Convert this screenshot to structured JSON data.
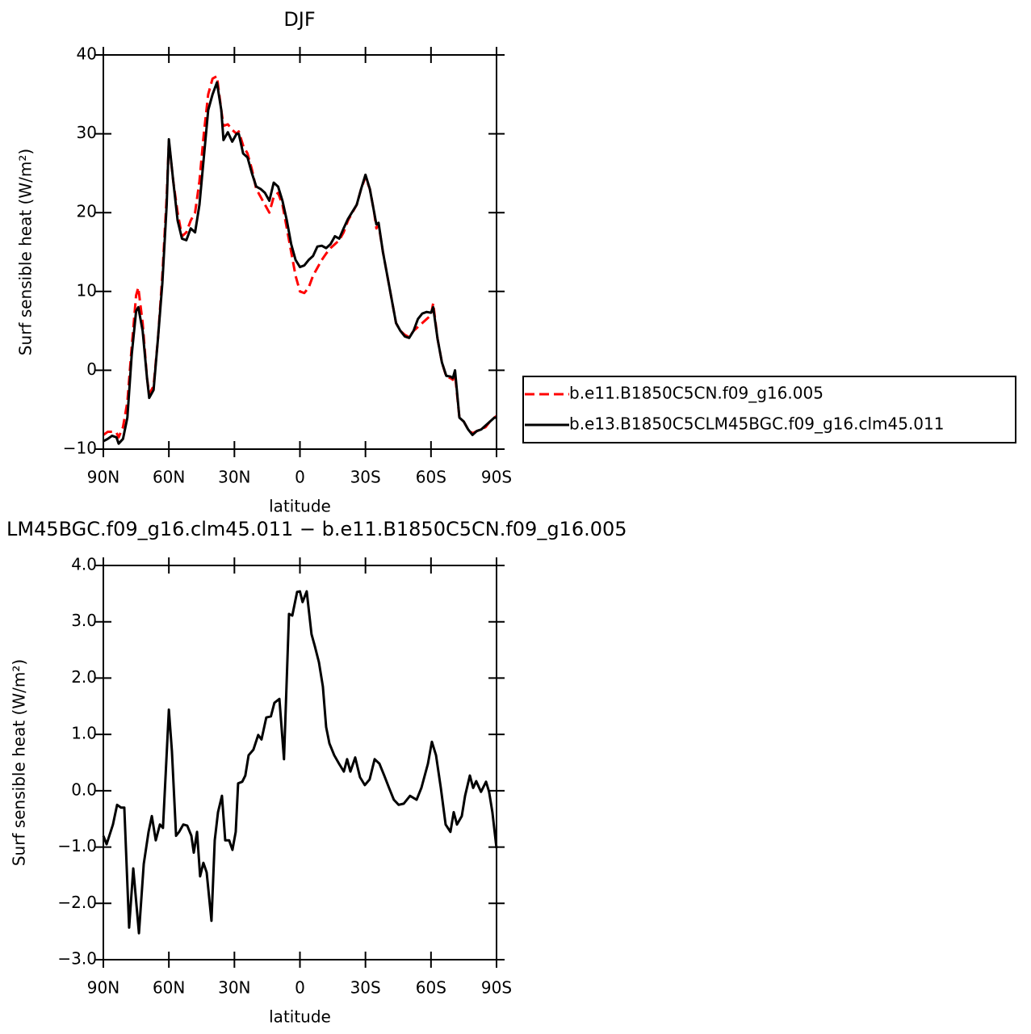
{
  "chart_data": [
    {
      "type": "line",
      "title": "DJF",
      "xlabel": "latitude",
      "ylabel": "Surf  sensible heat (W/m²)",
      "x": [
        90,
        88,
        86,
        84,
        83,
        81,
        79,
        77,
        75,
        74,
        72,
        70,
        69,
        67,
        65,
        63,
        61,
        60,
        58,
        56,
        54,
        52,
        50,
        48,
        46,
        44,
        42,
        40,
        38,
        36,
        35,
        33,
        31,
        29,
        28,
        26,
        24,
        22,
        20,
        18,
        16,
        14,
        12,
        10,
        8,
        6,
        4,
        2,
        0,
        -2,
        -4,
        -6,
        -8,
        -10,
        -12,
        -14,
        -16,
        -18,
        -20,
        -22,
        -24,
        -26,
        -28,
        -30,
        -32,
        -34,
        -35,
        -36,
        -38,
        -40,
        -42,
        -44,
        -46,
        -48,
        -50,
        -52,
        -54,
        -56,
        -58,
        -60,
        -61,
        -63,
        -65,
        -67,
        -69,
        -70,
        -71,
        -73,
        -75,
        -77,
        -79,
        -81,
        -83,
        -85,
        -87,
        -89,
        -90
      ],
      "series": [
        {
          "name": "b.e11.B1850C5CN.f09_g16.005",
          "color": "#ff0000",
          "style": "dashed",
          "values": [
            -8.2,
            -7.8,
            -7.8,
            -7.9,
            -8.5,
            -7.2,
            -4,
            3,
            9.5,
            10.5,
            6,
            -1,
            -3,
            -2,
            4,
            12,
            22,
            29,
            24,
            20,
            17,
            17.5,
            19,
            20,
            24,
            30,
            35,
            37,
            37.3,
            33,
            31,
            31.2,
            30.5,
            30,
            30.3,
            28.5,
            27.5,
            25.5,
            23,
            22,
            21,
            20,
            22,
            22.5,
            21,
            18,
            15,
            12,
            10,
            9.8,
            10.5,
            12,
            13,
            14,
            14.8,
            15.5,
            16,
            16.5,
            17.5,
            19,
            20,
            21,
            23,
            24.5,
            23,
            20,
            18,
            18.5,
            15,
            12,
            9,
            6,
            5,
            4.5,
            4.2,
            5,
            5.5,
            6,
            6.5,
            7,
            8.5,
            4,
            1,
            -0.8,
            -1,
            -1.2,
            -0.5,
            -6,
            -6.5,
            -7.5,
            -8,
            -7.7,
            -7.5,
            -7.2,
            -6.5,
            -6,
            -5.8
          ]
        },
        {
          "name": "b.e13.B1850C5CLM45BGC.f09_g16.clm45.011",
          "color": "#000000",
          "style": "solid",
          "values": [
            -9,
            -8.7,
            -8.3,
            -8.5,
            -9.3,
            -8.7,
            -6,
            2,
            7.5,
            8,
            5,
            -1,
            -3.5,
            -2.5,
            4,
            11,
            21,
            29.3,
            24,
            19,
            16.7,
            16.5,
            18,
            17.5,
            21,
            27,
            33,
            35,
            36.5,
            33,
            29.2,
            30.2,
            29,
            30,
            30,
            27.5,
            27,
            25,
            23.3,
            23,
            22.5,
            21.5,
            23.8,
            23.3,
            21.5,
            19,
            16,
            14,
            13.1,
            13.3,
            14,
            14.5,
            15.7,
            15.8,
            15.5,
            16,
            17,
            16.7,
            18,
            19.2,
            20.1,
            21,
            23,
            24.8,
            23,
            20,
            18.5,
            18.7,
            15,
            12,
            9,
            6,
            5,
            4.3,
            4.1,
            5,
            6.5,
            7.2,
            7.4,
            7.3,
            8,
            4,
            1,
            -0.7,
            -0.8,
            -1,
            0,
            -6,
            -6.5,
            -7.5,
            -8.2,
            -7.7,
            -7.5,
            -7,
            -6.5,
            -6,
            -6
          ]
        }
      ],
      "legend": "right",
      "xlim": [
        90,
        -90
      ],
      "xticks": [
        {
          "value": 90,
          "label": "90N"
        },
        {
          "value": 60,
          "label": "60N"
        },
        {
          "value": 30,
          "label": "30N"
        },
        0,
        {
          "value": -30,
          "label": "30S"
        },
        {
          "value": -60,
          "label": "60S"
        },
        {
          "value": -90,
          "label": "90S"
        }
      ],
      "ylim": [
        -10,
        40
      ],
      "yticks": [
        {
          "value": -10,
          "label": "−10"
        },
        0,
        10,
        20,
        30,
        40
      ]
    },
    {
      "type": "line",
      "title": "LM45BGC.f09_g16.clm45.011 − b.e11.B1850C5CN.f09_g16.005",
      "xlabel": "latitude",
      "ylabel": "Surf  sensible heat (W/m²)",
      "x": [
        90,
        88.5,
        85.6,
        83.7,
        81.9,
        80.4,
        78.2,
        76.3,
        73.7,
        71.5,
        69.3,
        67.8,
        66,
        64.1,
        62.7,
        61.5,
        60,
        58.6,
        56.7,
        55.3,
        53.4,
        51.6,
        49.7,
        48.6,
        47.1,
        45.7,
        44.2,
        42.7,
        40.5,
        39,
        37.5,
        35.7,
        34.2,
        32.4,
        30.9,
        29.4,
        28.3,
        26.4,
        25,
        23.5,
        21.3,
        19.1,
        17.6,
        15.4,
        13.3,
        11.7,
        9.4,
        7.3,
        5,
        3.5,
        1.3,
        0,
        -1.2,
        -3.1,
        -5.3,
        -6.8,
        -8.7,
        -10.5,
        -12,
        -13.5,
        -15.7,
        -17.9,
        -20.1,
        -21.6,
        -23.1,
        -25.3,
        -27.5,
        -29.7,
        -31.9,
        -34.2,
        -36.4,
        -38.6,
        -40.8,
        -43,
        -45.2,
        -47.5,
        -50.4,
        -53.4,
        -55.6,
        -58.6,
        -60.4,
        -62.3,
        -64.5,
        -66.7,
        -68.9,
        -70.4,
        -71.9,
        -74.1,
        -75.6,
        -77.8,
        -79.3,
        -80.7,
        -82.9,
        -85.2,
        -86.6,
        -88.1,
        -90
      ],
      "series": [
        {
          "color": "#000000",
          "style": "solid",
          "values": [
            -0.8,
            -0.95,
            -0.6,
            -0.25,
            -0.3,
            -0.3,
            -2.43,
            -1.38,
            -2.53,
            -1.3,
            -0.73,
            -0.45,
            -0.88,
            -0.6,
            -0.66,
            0.27,
            1.44,
            0.7,
            -0.8,
            -0.73,
            -0.6,
            -0.62,
            -0.8,
            -1.1,
            -0.73,
            -1.52,
            -1.28,
            -1.45,
            -2.31,
            -0.88,
            -0.38,
            -0.09,
            -0.88,
            -0.88,
            -1.05,
            -0.73,
            0.13,
            0.16,
            0.27,
            0.63,
            0.73,
            0.99,
            0.91,
            1.3,
            1.32,
            1.56,
            1.63,
            0.56,
            3.14,
            3.11,
            3.53,
            3.54,
            3.35,
            3.54,
            2.78,
            2.57,
            2.28,
            1.85,
            1.13,
            0.84,
            0.63,
            0.48,
            0.34,
            0.56,
            0.34,
            0.59,
            0.24,
            0.1,
            0.2,
            0.56,
            0.48,
            0.27,
            0.05,
            -0.16,
            -0.25,
            -0.23,
            -0.09,
            -0.16,
            0.05,
            0.48,
            0.87,
            0.63,
            0.05,
            -0.6,
            -0.73,
            -0.38,
            -0.6,
            -0.45,
            -0.09,
            0.27,
            0.05,
            0.17,
            -0.02,
            0.16,
            -0.02,
            -0.38,
            -1.02
          ]
        }
      ],
      "xlim": [
        90,
        -90
      ],
      "xticks": [
        {
          "value": 90,
          "label": "90N"
        },
        {
          "value": 60,
          "label": "60N"
        },
        {
          "value": 30,
          "label": "30N"
        },
        0,
        {
          "value": -30,
          "label": "30S"
        },
        {
          "value": -60,
          "label": "60S"
        },
        {
          "value": -90,
          "label": "90S"
        }
      ],
      "ylim": [
        -3,
        4
      ],
      "yticks": [
        {
          "value": -3,
          "label": "−3.0"
        },
        {
          "value": -2,
          "label": "−2.0"
        },
        {
          "value": -1,
          "label": "−1.0"
        },
        {
          "value": 0,
          "label": "0.0"
        },
        {
          "value": 1,
          "label": "1.0"
        },
        {
          "value": 2,
          "label": "2.0"
        },
        {
          "value": 3,
          "label": "3.0"
        },
        {
          "value": 4,
          "label": "4.0"
        }
      ]
    }
  ]
}
